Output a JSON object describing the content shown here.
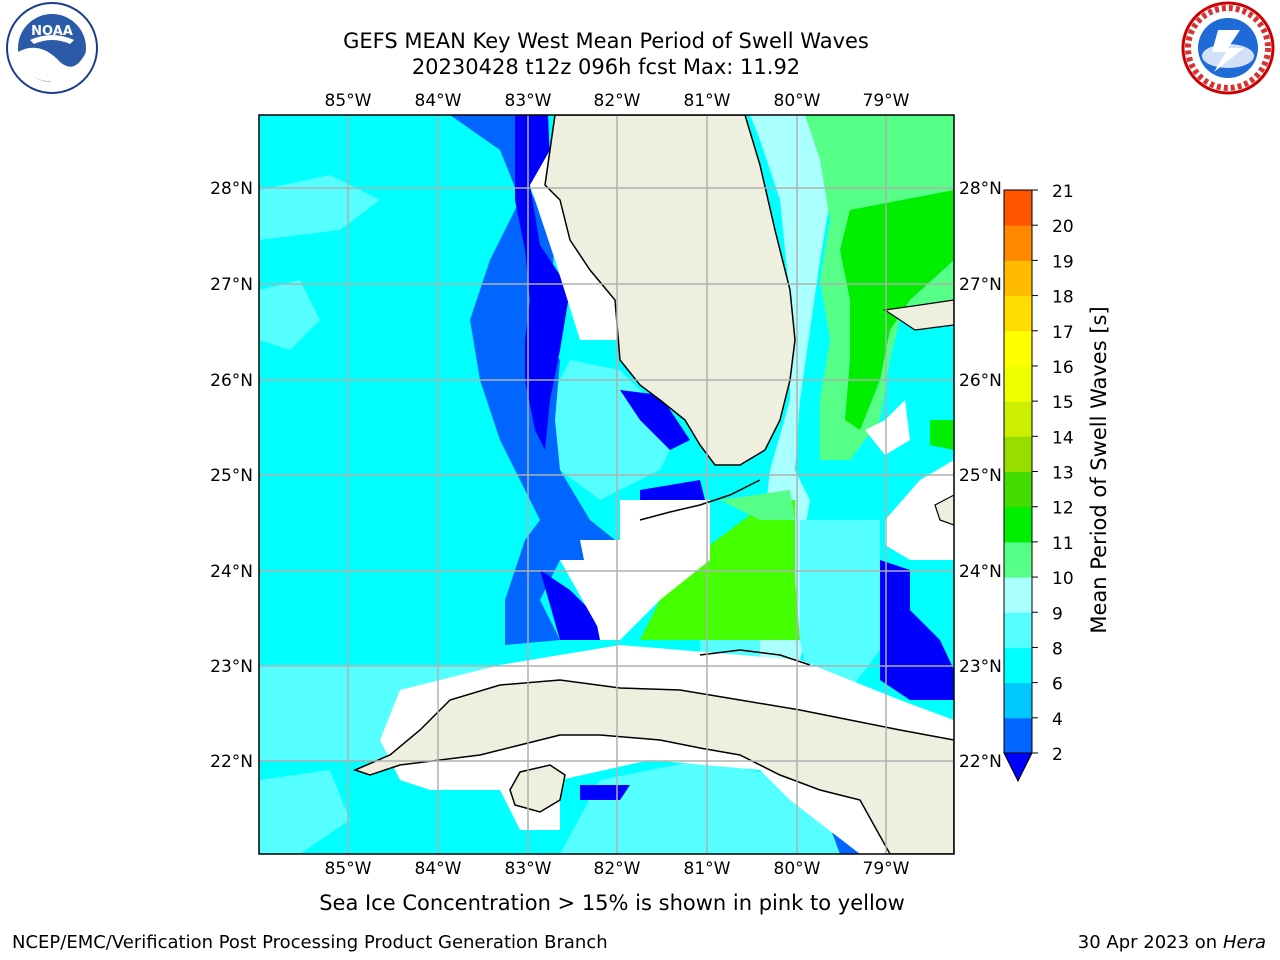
{
  "title": {
    "line1": "GEFS MEAN Key West Mean Period of Swell Waves",
    "line2": "20230428 t12z 096h fcst   Max: 11.92"
  },
  "axes": {
    "lon_labels": [
      "85°W",
      "84°W",
      "83°W",
      "82°W",
      "81°W",
      "80°W",
      "79°W"
    ],
    "lat_labels": [
      "28°N",
      "27°N",
      "26°N",
      "25°N",
      "24°N",
      "23°N",
      "22°N"
    ]
  },
  "colorbar": {
    "label": "Mean Period of Swell Waves [s]",
    "ticks": [
      "2",
      "4",
      "6",
      "8",
      "9",
      "10",
      "11",
      "12",
      "13",
      "14",
      "15",
      "16",
      "17",
      "18",
      "19",
      "20",
      "21"
    ],
    "colors": [
      "#0066ff",
      "#00c8ff",
      "#00ffff",
      "#55ffff",
      "#aaffff",
      "#55ff88",
      "#00ee00",
      "#44dd00",
      "#99dd00",
      "#ccee00",
      "#eeff00",
      "#ffff00",
      "#ffdd00",
      "#ffbb00",
      "#ff8800",
      "#ff5500",
      "#ff2200",
      "#ff0000"
    ],
    "under_color": "#0000ff"
  },
  "note": "Sea Ice Concentration > 15% is shown in pink to yellow",
  "footer": {
    "left": "NCEP/EMC/Verification Post Processing Product Generation Branch",
    "date": "30 Apr 2023 on ",
    "host": "Hera"
  },
  "logos": {
    "noaa": "NOAA",
    "nws": "NATIONAL WEATHER SERVICE"
  }
}
